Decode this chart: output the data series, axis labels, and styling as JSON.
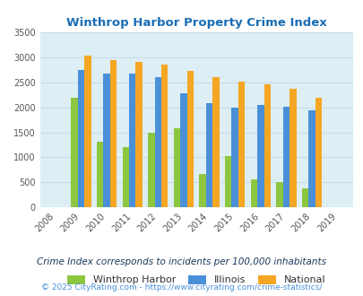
{
  "title": "Winthrop Harbor Property Crime Index",
  "years": [
    2008,
    2009,
    2010,
    2011,
    2012,
    2013,
    2014,
    2015,
    2016,
    2017,
    2018,
    2019
  ],
  "winthrop_harbor": [
    null,
    2200,
    1320,
    1210,
    1490,
    1580,
    670,
    1030,
    555,
    510,
    370,
    null
  ],
  "illinois": [
    null,
    2750,
    2670,
    2670,
    2600,
    2290,
    2080,
    2000,
    2050,
    2010,
    1940,
    null
  ],
  "national": [
    null,
    3040,
    2950,
    2910,
    2860,
    2730,
    2600,
    2510,
    2470,
    2380,
    2200,
    null
  ],
  "ylim": [
    0,
    3500
  ],
  "yticks": [
    0,
    500,
    1000,
    1500,
    2000,
    2500,
    3000,
    3500
  ],
  "bar_width": 0.26,
  "color_winthrop": "#8dc63f",
  "color_illinois": "#4a90d9",
  "color_national": "#f5a623",
  "plot_bg": "#ddeef5",
  "title_color": "#1a6eb5",
  "legend_labels": [
    "Winthrop Harbor",
    "Illinois",
    "National"
  ],
  "footnote1": "Crime Index corresponds to incidents per 100,000 inhabitants",
  "footnote2": "© 2025 CityRating.com - https://www.cityrating.com/crime-statistics/",
  "footnote1_color": "#1a3a5c",
  "footnote2_color": "#4a90d9",
  "grid_color": "#c8dce8"
}
